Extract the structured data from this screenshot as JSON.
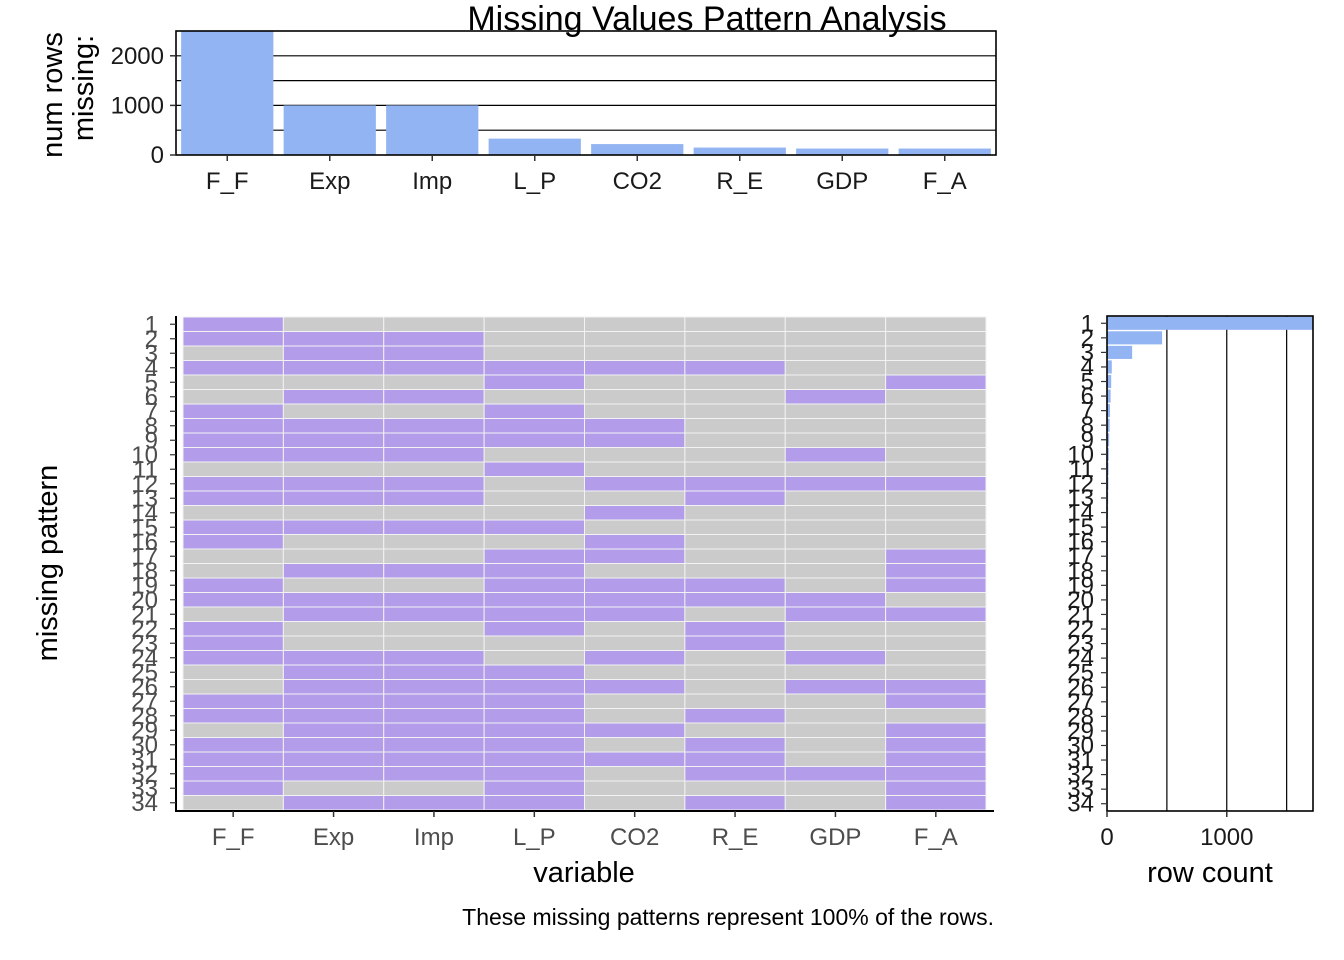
{
  "chart_data": [
    {
      "type": "bar",
      "title": "Missing Values Pattern Analysis",
      "ylabel_line1": "num rows",
      "ylabel_line2": "missing:",
      "categories": [
        "F_F",
        "Exp",
        "Imp",
        "L_P",
        "CO2",
        "R_E",
        "GDP",
        "F_A"
      ],
      "values": [
        2500,
        1000,
        1000,
        330,
        220,
        150,
        130,
        130
      ],
      "ylim": [
        0,
        2500
      ],
      "yticks": [
        0,
        1000,
        2000
      ],
      "grid": true,
      "colors": {
        "bar": "#93b4f2"
      }
    },
    {
      "type": "heatmap",
      "xlabel": "variable",
      "ylabel": "missing pattern",
      "columns": [
        "F_F",
        "Exp",
        "Imp",
        "L_P",
        "CO2",
        "R_E",
        "GDP",
        "F_A"
      ],
      "rows": [
        "1",
        "2",
        "3",
        "4",
        "5",
        "6",
        "7",
        "8",
        "9",
        "10",
        "11",
        "12",
        "13",
        "14",
        "15",
        "16",
        "17",
        "18",
        "19",
        "20",
        "21",
        "22",
        "23",
        "24",
        "25",
        "26",
        "27",
        "28",
        "29",
        "30",
        "31",
        "32",
        "33",
        "34"
      ],
      "missing_matrix": [
        [
          1,
          0,
          0,
          0,
          0,
          0,
          0,
          0
        ],
        [
          1,
          1,
          1,
          0,
          0,
          0,
          0,
          0
        ],
        [
          0,
          1,
          1,
          0,
          0,
          0,
          0,
          0
        ],
        [
          1,
          1,
          1,
          1,
          1,
          1,
          0,
          0
        ],
        [
          0,
          0,
          0,
          1,
          0,
          0,
          0,
          1
        ],
        [
          0,
          1,
          1,
          0,
          0,
          0,
          1,
          0
        ],
        [
          1,
          0,
          0,
          1,
          0,
          0,
          0,
          0
        ],
        [
          1,
          1,
          1,
          1,
          1,
          0,
          0,
          0
        ],
        [
          1,
          1,
          1,
          1,
          1,
          0,
          0,
          0
        ],
        [
          1,
          1,
          1,
          0,
          0,
          0,
          1,
          0
        ],
        [
          0,
          0,
          0,
          1,
          0,
          0,
          0,
          0
        ],
        [
          1,
          1,
          1,
          0,
          1,
          1,
          1,
          1
        ],
        [
          1,
          1,
          1,
          0,
          0,
          1,
          0,
          0
        ],
        [
          0,
          0,
          0,
          0,
          1,
          0,
          0,
          0
        ],
        [
          1,
          1,
          1,
          1,
          0,
          0,
          0,
          0
        ],
        [
          1,
          0,
          0,
          0,
          1,
          0,
          0,
          0
        ],
        [
          0,
          0,
          0,
          1,
          1,
          0,
          0,
          1
        ],
        [
          0,
          1,
          1,
          1,
          0,
          0,
          0,
          1
        ],
        [
          1,
          0,
          0,
          1,
          1,
          1,
          0,
          1
        ],
        [
          1,
          1,
          1,
          1,
          1,
          1,
          1,
          0
        ],
        [
          0,
          1,
          1,
          1,
          1,
          0,
          1,
          1
        ],
        [
          1,
          0,
          0,
          1,
          0,
          1,
          0,
          0
        ],
        [
          1,
          0,
          0,
          0,
          0,
          1,
          0,
          0
        ],
        [
          1,
          1,
          1,
          0,
          1,
          0,
          1,
          0
        ],
        [
          0,
          1,
          1,
          1,
          0,
          0,
          0,
          0
        ],
        [
          0,
          1,
          1,
          1,
          1,
          0,
          1,
          1
        ],
        [
          1,
          1,
          1,
          1,
          0,
          0,
          0,
          1
        ],
        [
          1,
          1,
          1,
          1,
          0,
          1,
          0,
          0
        ],
        [
          0,
          1,
          1,
          1,
          1,
          0,
          0,
          1
        ],
        [
          1,
          1,
          1,
          1,
          0,
          1,
          0,
          1
        ],
        [
          1,
          1,
          1,
          1,
          1,
          1,
          0,
          1
        ],
        [
          1,
          1,
          1,
          1,
          0,
          1,
          1,
          1
        ],
        [
          1,
          0,
          0,
          1,
          0,
          0,
          0,
          1
        ],
        [
          0,
          1,
          1,
          1,
          0,
          1,
          0,
          1
        ]
      ],
      "colors": {
        "missing": "#b39ce9",
        "present": "#cbcbcb",
        "divider": "#f2f2f2"
      }
    },
    {
      "type": "bar",
      "orientation": "horizontal",
      "xlabel": "row count",
      "categories": [
        "1",
        "2",
        "3",
        "4",
        "5",
        "6",
        "7",
        "8",
        "9",
        "10",
        "11",
        "12",
        "13",
        "14",
        "15",
        "16",
        "17",
        "18",
        "19",
        "20",
        "21",
        "22",
        "23",
        "24",
        "25",
        "26",
        "27",
        "28",
        "29",
        "30",
        "31",
        "32",
        "33",
        "34"
      ],
      "values": [
        1720,
        460,
        210,
        40,
        35,
        30,
        25,
        22,
        18,
        15,
        13,
        12,
        10,
        9,
        8,
        7,
        6,
        5,
        5,
        4,
        4,
        3,
        3,
        3,
        2,
        2,
        2,
        2,
        1,
        1,
        1,
        1,
        1,
        1
      ],
      "xlim": [
        0,
        1720
      ],
      "xticks": [
        0,
        1000
      ],
      "grid": true,
      "colors": {
        "bar": "#93b4f2"
      }
    }
  ],
  "caption": "These missing patterns represent 100% of the rows."
}
